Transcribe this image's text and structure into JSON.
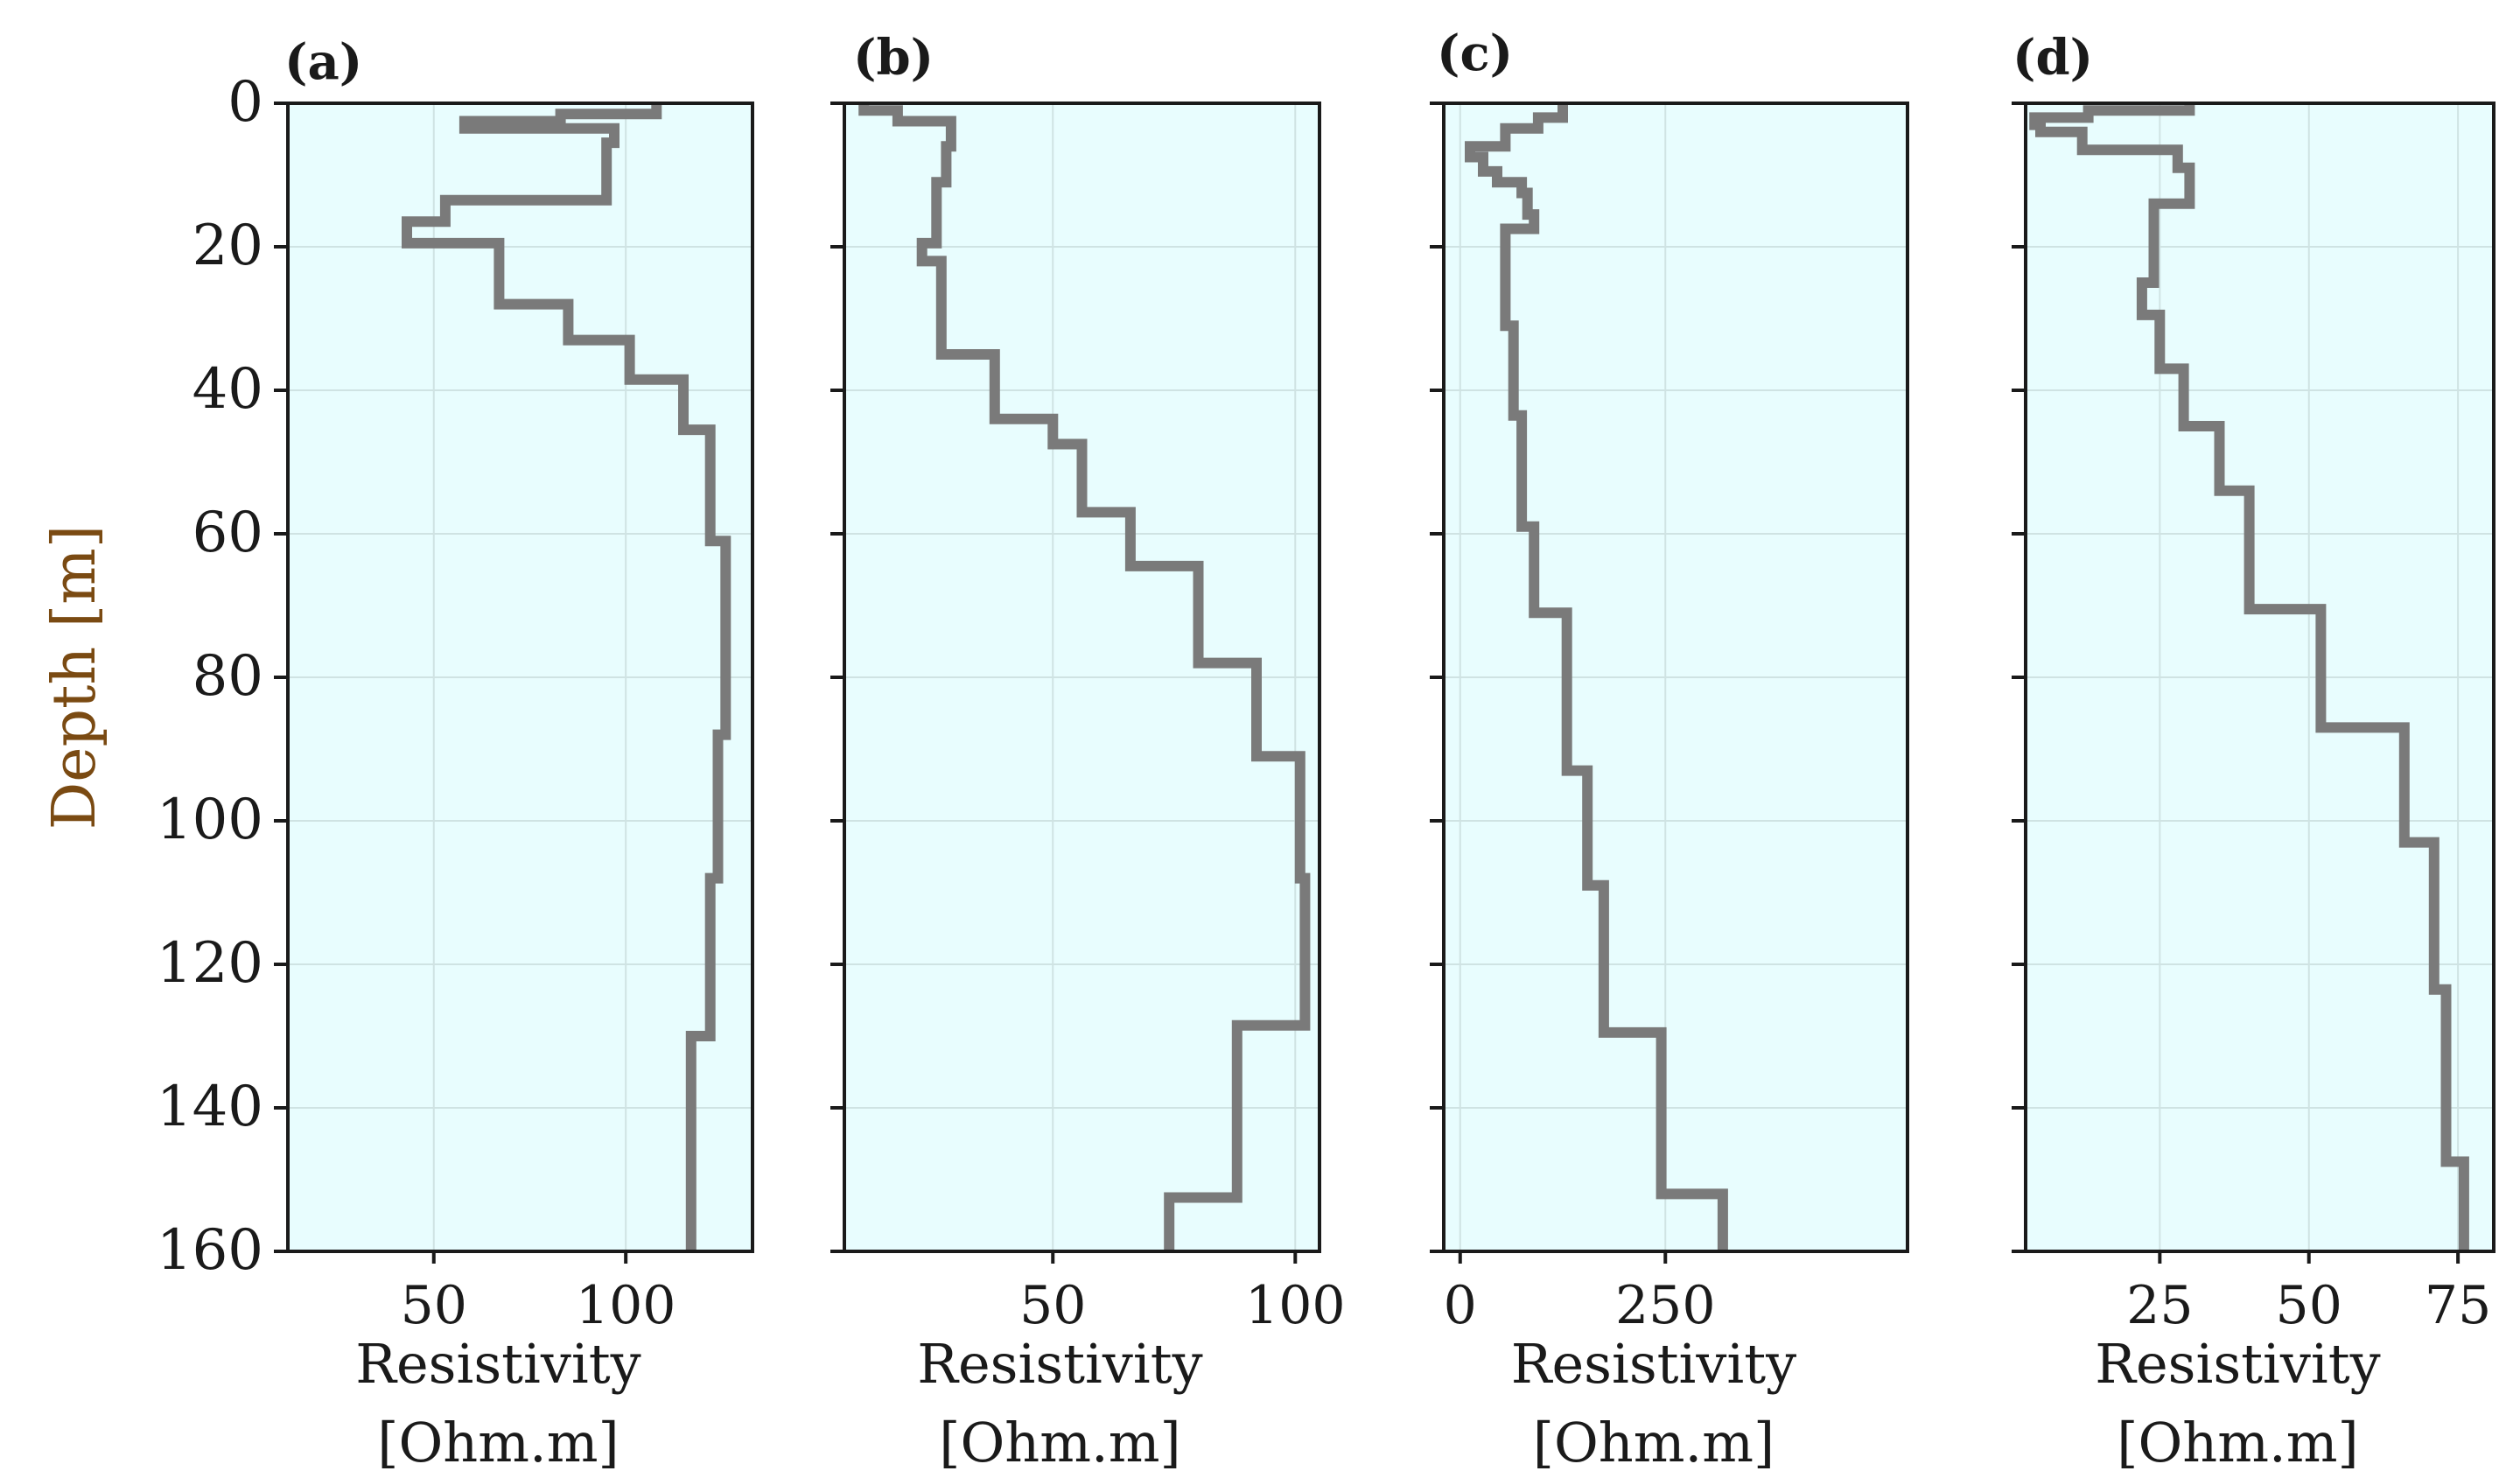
{
  "chart_data": {
    "type": "line",
    "ylabel": "Depth [m]",
    "yticks": [
      "0",
      "20",
      "40",
      "60",
      "80",
      "100",
      "120",
      "140",
      "160"
    ],
    "ylim": [
      0,
      160
    ],
    "y_inverted": true,
    "panels": [
      {
        "label": "(a)",
        "label_text": "a",
        "xlabel_line1": "Resistivity",
        "xlabel_line2": "[Ohm.m]",
        "xlim": [
          12,
          133
        ],
        "xticks": [
          50,
          100
        ],
        "xtick_labels": [
          "50",
          "100"
        ],
        "series": {
          "name": "resistivity",
          "depth": [
            0,
            1.5,
            1.5,
            2.5,
            2.5,
            3.5,
            3.5,
            5.5,
            5.5,
            13.5,
            13.5,
            16.5,
            16.5,
            19.5,
            19.5,
            28,
            28,
            33,
            33,
            38.5,
            38.5,
            45.5,
            45.5,
            61,
            61,
            88,
            88,
            108,
            108,
            130,
            130,
            160
          ],
          "resistivity": [
            108,
            108,
            83,
            83,
            58,
            58,
            97,
            97,
            95,
            95,
            53,
            53,
            43,
            43,
            67,
            67,
            85,
            85,
            101,
            101,
            115,
            115,
            122,
            122,
            126,
            126,
            124,
            124,
            122,
            122,
            117,
            117
          ]
        }
      },
      {
        "label": "(b)",
        "label_text": "b",
        "xlabel_line1": "Resistivity",
        "xlabel_line2": "[Ohm.m]",
        "xlim": [
          7,
          105
        ],
        "xticks": [
          50,
          100
        ],
        "xtick_labels": [
          "50",
          "100"
        ],
        "series": {
          "name": "resistivity",
          "depth": [
            0,
            1,
            1,
            2.5,
            2.5,
            6,
            6,
            11,
            11,
            19.5,
            19.5,
            22,
            22,
            35,
            35,
            44,
            44,
            47.5,
            47.5,
            57,
            57,
            64.5,
            64.5,
            78,
            78,
            91,
            91,
            108,
            108,
            128.5,
            128.5,
            152.5,
            152.5,
            160
          ],
          "resistivity": [
            11,
            11,
            18,
            18,
            29,
            29,
            28,
            28,
            26,
            26,
            23,
            23,
            27,
            27,
            38,
            38,
            50,
            50,
            56,
            56,
            66,
            66,
            80,
            80,
            92,
            92,
            101,
            101,
            102,
            102,
            88,
            88,
            74,
            74
          ]
        }
      },
      {
        "label": "(c)",
        "label_text": "c",
        "xlabel_line1": "Resistivity",
        "xlabel_line2": "[Ohm.m]",
        "xlim": [
          -20,
          545
        ],
        "xticks": [
          0,
          250
        ],
        "xtick_labels": [
          "0",
          "250"
        ],
        "series": {
          "name": "resistivity",
          "depth": [
            0,
            2,
            2,
            3.5,
            3.5,
            6,
            6,
            7.5,
            7.5,
            9.5,
            9.5,
            11,
            11,
            12.5,
            12.5,
            15.5,
            15.5,
            17.5,
            17.5,
            31,
            31,
            43.5,
            43.5,
            59,
            59,
            71,
            71,
            93,
            93,
            109,
            109,
            129.5,
            129.5,
            152,
            152,
            160
          ],
          "resistivity": [
            125,
            125,
            95,
            95,
            55,
            55,
            12,
            12,
            28,
            28,
            45,
            45,
            75,
            75,
            82,
            82,
            90,
            90,
            55,
            55,
            65,
            65,
            75,
            75,
            90,
            90,
            130,
            130,
            155,
            155,
            175,
            175,
            245,
            245,
            320,
            320
          ]
        }
      },
      {
        "label": "(d)",
        "label_text": "d",
        "xlabel_line1": "Resistivity",
        "xlabel_line2": "[Ohm.m]",
        "xlim": [
          2.5,
          81
        ],
        "xticks": [
          25,
          50,
          75
        ],
        "xtick_labels": [
          "25",
          "50",
          "75"
        ],
        "series": {
          "name": "resistivity",
          "depth": [
            0,
            1,
            1,
            2,
            2,
            3,
            3,
            4,
            4,
            6.5,
            6.5,
            9,
            9,
            14,
            14,
            25,
            25,
            29.5,
            29.5,
            37,
            37,
            45,
            45,
            54,
            54,
            70.5,
            70.5,
            87,
            87,
            103,
            103,
            123.5,
            123.5,
            147.5,
            147.5,
            160
          ],
          "resistivity": [
            30,
            30,
            13,
            13,
            4,
            4,
            5,
            5,
            12,
            12,
            28,
            28,
            30,
            30,
            24,
            24,
            22,
            22,
            25,
            25,
            29,
            29,
            35,
            35,
            40,
            40,
            52,
            52,
            66,
            66,
            71,
            71,
            73,
            73,
            76,
            76
          ]
        }
      }
    ]
  }
}
